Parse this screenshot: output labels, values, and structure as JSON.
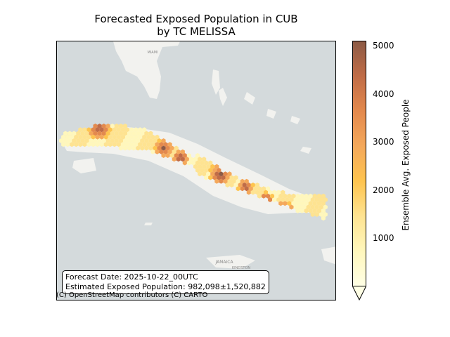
{
  "title": {
    "line1": "Forecasted Exposed Population in CUB",
    "line2": "by TC MELISSA"
  },
  "info": {
    "forecast_date": "Forecast Date: 2025-10-22_00UTC",
    "estimated_population": "Estimated Exposed Population: 982,098±1,520,882"
  },
  "attribution": "(C) OpenStreetMap contributors (C) CARTO",
  "map_labels": {
    "jamaica": "JAMAICA",
    "kingston": "KINGSTON",
    "miami": "MIAMI"
  },
  "colorbar": {
    "label": "Ensemble Avg. Exposed People",
    "min": 0,
    "max": 5100,
    "ticks": [
      {
        "value": 1000,
        "label": "1000"
      },
      {
        "value": 2000,
        "label": "2000"
      },
      {
        "value": 3000,
        "label": "3000"
      },
      {
        "value": 4000,
        "label": "4000"
      },
      {
        "value": 5000,
        "label": "5000"
      }
    ],
    "colors": [
      "#ffffe5",
      "#fff7bc",
      "#fee391",
      "#fec44f",
      "#f4a85b",
      "#e3894d",
      "#c06c47",
      "#8c5a45"
    ]
  },
  "colors": {
    "ocean": "#d4dadc",
    "land": "#f2f2ef"
  }
}
